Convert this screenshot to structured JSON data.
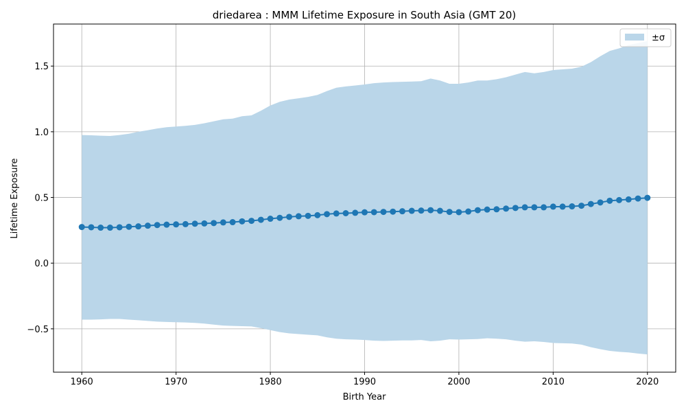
{
  "chart_data": {
    "type": "line",
    "title": "driedarea : MMM Lifetime Exposure in South Asia (GMT 20)",
    "xlabel": "Birth Year",
    "ylabel": "Lifetime Exposure",
    "xlim": [
      1957,
      2023
    ],
    "ylim": [
      -0.83,
      1.82
    ],
    "xticks": [
      1960,
      1970,
      1980,
      1990,
      2000,
      2010,
      2020
    ],
    "yticks": [
      -0.5,
      0.0,
      0.5,
      1.0,
      1.5
    ],
    "ytick_labels": [
      "−0.5",
      "0.0",
      "0.5",
      "1.0",
      "1.5"
    ],
    "grid": true,
    "legend_position": "top-right",
    "legend_label": "±σ",
    "colors": {
      "line": "#1f77b4",
      "band": "#bad6e9",
      "grid": "#b0b0b0"
    },
    "x": [
      1960,
      1961,
      1962,
      1963,
      1964,
      1965,
      1966,
      1967,
      1968,
      1969,
      1970,
      1971,
      1972,
      1973,
      1974,
      1975,
      1976,
      1977,
      1978,
      1979,
      1980,
      1981,
      1982,
      1983,
      1984,
      1985,
      1986,
      1987,
      1988,
      1989,
      1990,
      1991,
      1992,
      1993,
      1994,
      1995,
      1996,
      1997,
      1998,
      1999,
      2000,
      2001,
      2002,
      2003,
      2004,
      2005,
      2006,
      2007,
      2008,
      2009,
      2010,
      2011,
      2012,
      2013,
      2014,
      2015,
      2016,
      2017,
      2018,
      2019,
      2020
    ],
    "mean": [
      0.275,
      0.273,
      0.27,
      0.27,
      0.273,
      0.277,
      0.28,
      0.285,
      0.29,
      0.293,
      0.295,
      0.297,
      0.3,
      0.302,
      0.305,
      0.31,
      0.312,
      0.318,
      0.322,
      0.33,
      0.338,
      0.345,
      0.352,
      0.357,
      0.36,
      0.365,
      0.373,
      0.378,
      0.38,
      0.383,
      0.387,
      0.388,
      0.39,
      0.392,
      0.395,
      0.398,
      0.4,
      0.403,
      0.398,
      0.39,
      0.388,
      0.393,
      0.403,
      0.408,
      0.41,
      0.415,
      0.42,
      0.425,
      0.425,
      0.425,
      0.43,
      0.43,
      0.432,
      0.437,
      0.45,
      0.462,
      0.475,
      0.48,
      0.485,
      0.492,
      0.497
    ],
    "upper": [
      0.975,
      0.973,
      0.97,
      0.968,
      0.975,
      0.985,
      1.0,
      1.012,
      1.025,
      1.035,
      1.04,
      1.045,
      1.052,
      1.065,
      1.08,
      1.095,
      1.1,
      1.118,
      1.125,
      1.16,
      1.2,
      1.228,
      1.245,
      1.255,
      1.265,
      1.28,
      1.31,
      1.335,
      1.345,
      1.352,
      1.36,
      1.37,
      1.375,
      1.378,
      1.38,
      1.382,
      1.385,
      1.405,
      1.39,
      1.365,
      1.365,
      1.375,
      1.39,
      1.39,
      1.4,
      1.415,
      1.435,
      1.455,
      1.445,
      1.455,
      1.47,
      1.475,
      1.48,
      1.495,
      1.53,
      1.575,
      1.615,
      1.635,
      1.66,
      1.675,
      1.69
    ],
    "lower": [
      -0.43,
      -0.43,
      -0.428,
      -0.425,
      -0.425,
      -0.43,
      -0.435,
      -0.44,
      -0.445,
      -0.448,
      -0.45,
      -0.452,
      -0.455,
      -0.46,
      -0.468,
      -0.475,
      -0.478,
      -0.48,
      -0.482,
      -0.495,
      -0.51,
      -0.525,
      -0.535,
      -0.54,
      -0.545,
      -0.55,
      -0.565,
      -0.575,
      -0.58,
      -0.582,
      -0.585,
      -0.59,
      -0.592,
      -0.59,
      -0.588,
      -0.588,
      -0.585,
      -0.595,
      -0.59,
      -0.58,
      -0.582,
      -0.58,
      -0.578,
      -0.572,
      -0.575,
      -0.58,
      -0.59,
      -0.598,
      -0.595,
      -0.6,
      -0.608,
      -0.61,
      -0.612,
      -0.62,
      -0.64,
      -0.655,
      -0.668,
      -0.675,
      -0.68,
      -0.688,
      -0.695
    ]
  }
}
